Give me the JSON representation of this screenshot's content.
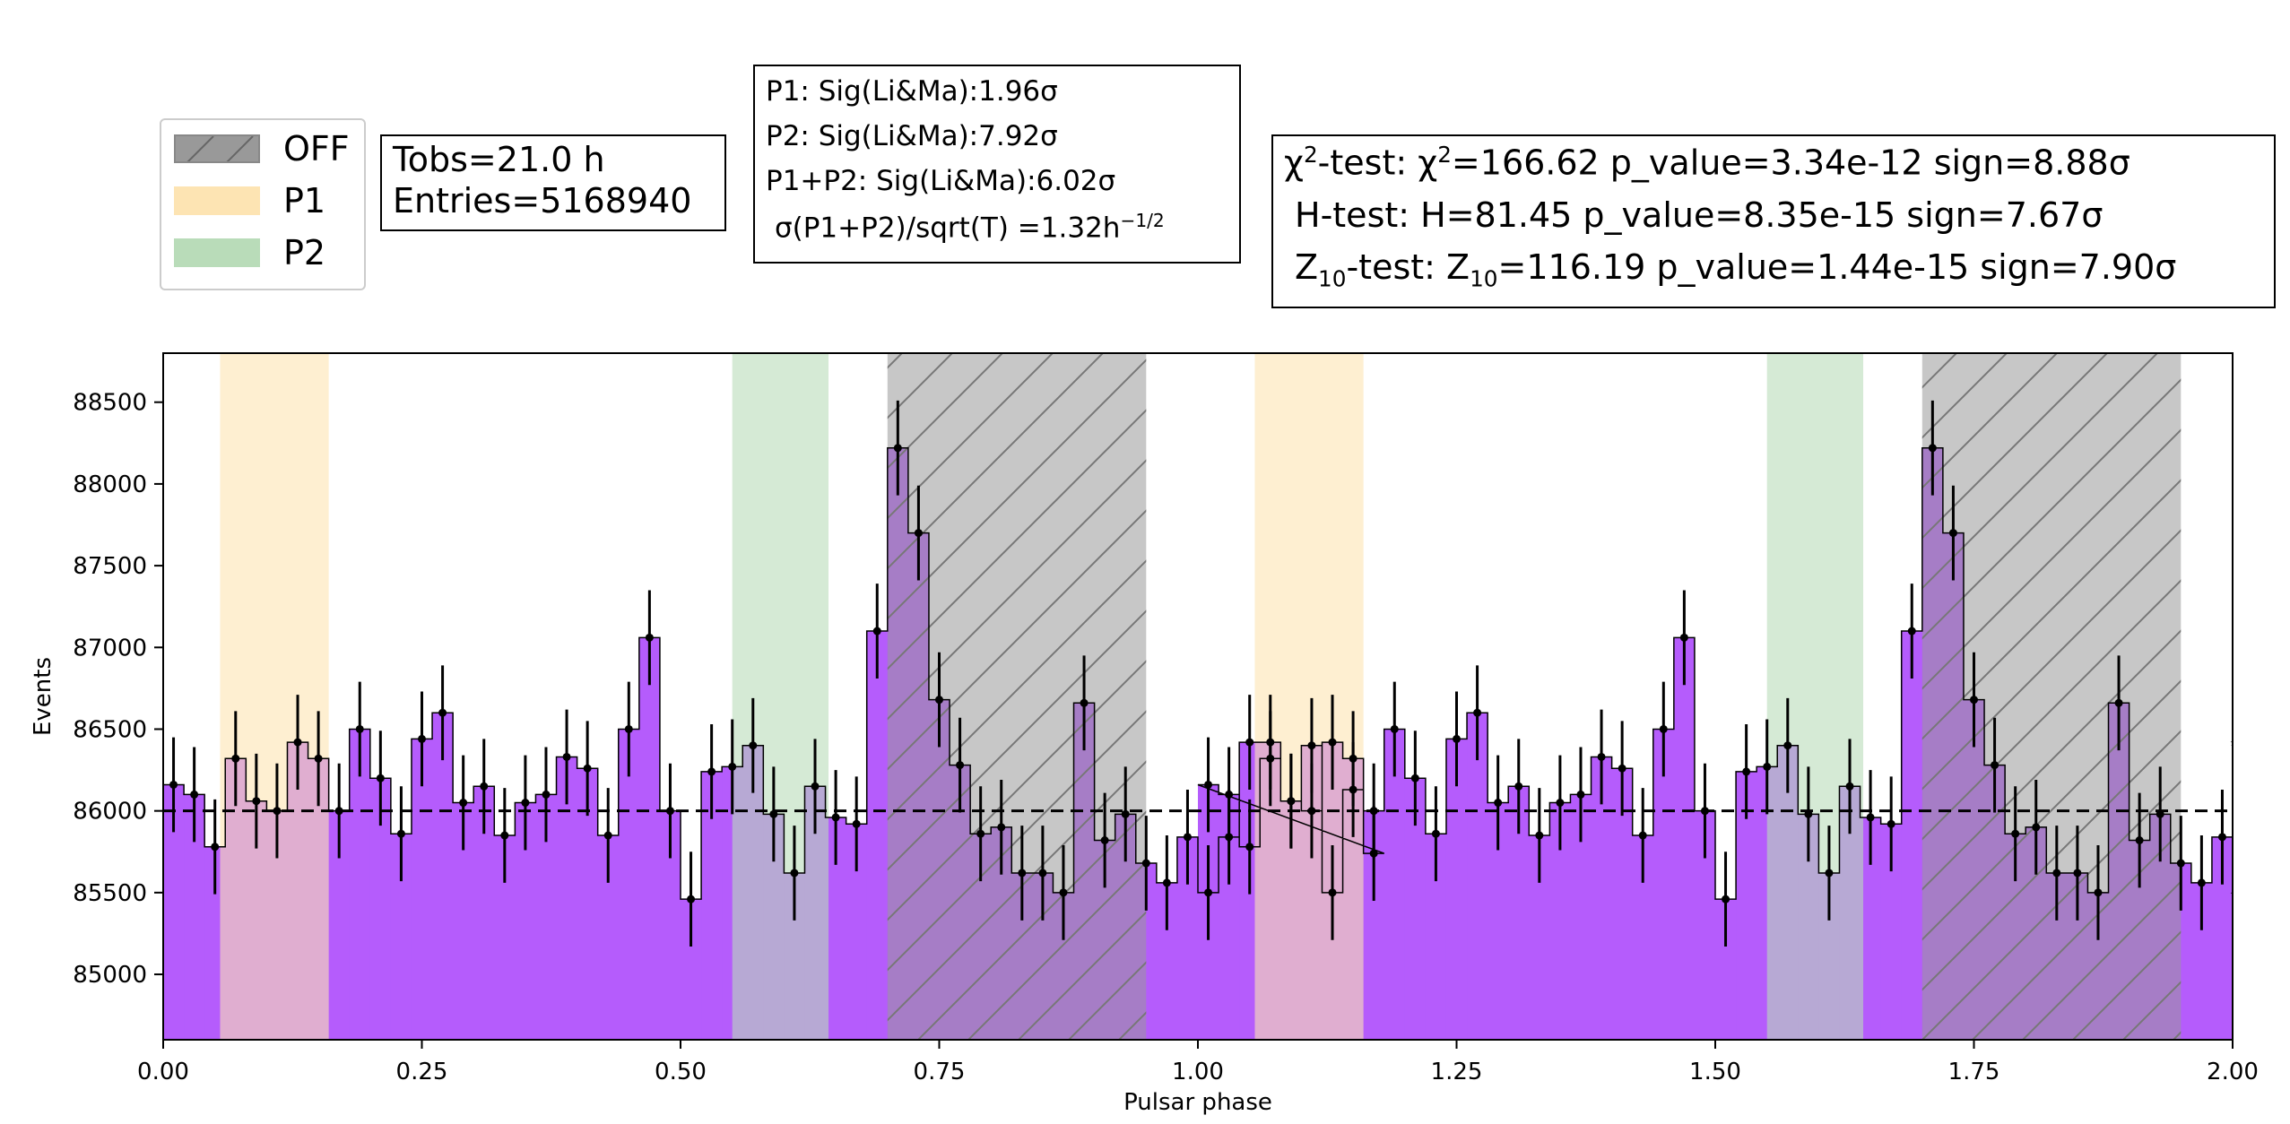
{
  "legend": {
    "items": [
      {
        "label": "OFF",
        "color": "#999999",
        "hatch": true
      },
      {
        "label": "P1",
        "color": "#fde4b3",
        "hatch": false
      },
      {
        "label": "P2",
        "color": "#b9dcb9",
        "hatch": false
      }
    ]
  },
  "obs_box": {
    "tobs": "Tobs=21.0 h",
    "entries": "Entries=5168940"
  },
  "sig_box": {
    "p1": "P1: Sig(Li&Ma):1.96σ",
    "p2": "P2: Sig(Li&Ma):7.92σ",
    "p1p2": "P1+P2: Sig(Li&Ma):6.02σ",
    "rate_prefix": "σ(P1+P2)/sqrt(T) =1.32h",
    "rate_exp": "−1/2"
  },
  "tests_box": {
    "chi2_a": "χ",
    "chi2_b": "-test: χ",
    "chi2_c": "=166.62 p_value=3.34e-12 sign=8.88σ",
    "chi2_sup": "2",
    "h_test": "H-test: H=81.45 p_value=8.35e-15 sign=7.67σ",
    "z_a": "Z",
    "z_sub": "10",
    "z_b": "-test: Z",
    "z_c": "=116.19 p_value=1.44e-15 sign=7.90σ"
  },
  "chart_data": {
    "type": "bar",
    "xlabel": "Pulsar phase",
    "ylabel": "Events",
    "xlim": [
      0.0,
      2.0
    ],
    "ylim": [
      84600,
      88800
    ],
    "xticks": [
      0.0,
      0.25,
      0.5,
      0.75,
      1.0,
      1.25,
      1.5,
      1.75,
      2.0
    ],
    "xtick_labels": [
      "0.00",
      "0.25",
      "0.50",
      "0.75",
      "1.00",
      "1.25",
      "1.50",
      "1.75",
      "2.00"
    ],
    "yticks": [
      85000,
      85500,
      86000,
      86500,
      87000,
      87500,
      88000,
      88500
    ],
    "ytick_labels": [
      "85000",
      "85500",
      "86000",
      "86500",
      "87000",
      "87500",
      "88000",
      "88500"
    ],
    "background_level": 86000,
    "bin_width": 0.02,
    "values": [
      86160,
      86100,
      85780,
      86320,
      86060,
      86000,
      86420,
      86320,
      86000,
      86500,
      86200,
      85860,
      86440,
      86600,
      86050,
      86150,
      85850,
      86050,
      86100,
      86330,
      86260,
      85850,
      86500,
      87060,
      86000,
      85460,
      86240,
      86270,
      86400,
      85980,
      85620,
      86150,
      85960,
      85920,
      87100,
      88220,
      87700,
      86680,
      86280,
      85860,
      85900,
      85620,
      85620,
      85500,
      86660,
      85820,
      85980,
      85680,
      85560,
      85840,
      85500,
      85840,
      86420,
      86420,
      86060,
      86400,
      85500,
      86130,
      85740
    ],
    "bar_color": "#b55cfc",
    "regions": [
      {
        "name": "P1",
        "start": 0.055,
        "end": 0.16,
        "color": "#fde4b3"
      },
      {
        "name": "P2",
        "start": 0.55,
        "end": 0.643,
        "color": "#b9dcb9"
      },
      {
        "name": "OFF",
        "start": 0.7,
        "end": 0.95,
        "color": "#999999"
      },
      {
        "name": "P1",
        "start": 1.055,
        "end": 1.16,
        "color": "#fde4b3"
      },
      {
        "name": "P2",
        "start": 1.55,
        "end": 1.643,
        "color": "#b9dcb9"
      },
      {
        "name": "OFF",
        "start": 1.7,
        "end": 1.95,
        "color": "#999999"
      }
    ]
  }
}
